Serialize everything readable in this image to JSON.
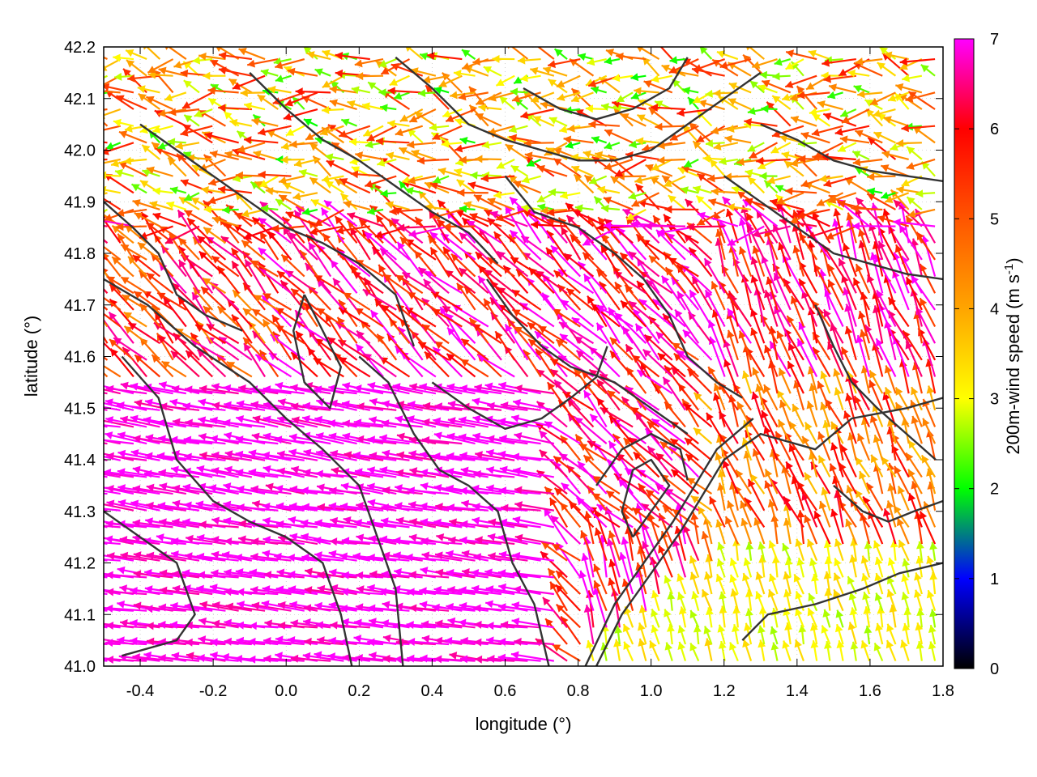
{
  "chart_data": {
    "type": "vector-field",
    "xlabel": "longitude (°)",
    "ylabel": "latitude (°)",
    "xlim": [
      -0.5,
      1.8
    ],
    "ylim": [
      41.0,
      42.2
    ],
    "xticks": [
      -0.4,
      -0.2,
      0.0,
      0.2,
      0.4,
      0.6,
      0.8,
      1.0,
      1.2,
      1.4,
      1.6,
      1.8
    ],
    "yticks": [
      41.0,
      41.1,
      41.2,
      41.3,
      41.4,
      41.5,
      41.6,
      41.7,
      41.8,
      41.9,
      42.0,
      42.1,
      42.2
    ],
    "xtick_labels": [
      "-0.4",
      "-0.2",
      "0.0",
      "0.2",
      "0.4",
      "0.6",
      "0.8",
      "1.0",
      "1.2",
      "1.4",
      "1.6",
      "1.8"
    ],
    "ytick_labels": [
      "41.0",
      "41.1",
      "41.2",
      "41.3",
      "41.4",
      "41.5",
      "41.6",
      "41.7",
      "41.8",
      "41.9",
      "42.0",
      "42.1",
      "42.2"
    ],
    "grid": "dotted",
    "colorbar": {
      "label_main": "200m-wind speed (m s",
      "label_sup": "-1",
      "label_end": ")",
      "range": [
        0,
        7
      ],
      "ticks": [
        "0",
        "1",
        "2",
        "3",
        "4",
        "5",
        "6",
        "7"
      ],
      "stops": [
        {
          "value": 0,
          "color": "#000000"
        },
        {
          "value": 1,
          "color": "#0000ff"
        },
        {
          "value": 2,
          "color": "#00ff00"
        },
        {
          "value": 3,
          "color": "#ffff00"
        },
        {
          "value": 4,
          "color": "#ffa500"
        },
        {
          "value": 5,
          "color": "#ff5500"
        },
        {
          "value": 6,
          "color": "#ff0000"
        },
        {
          "value": 7,
          "color": "#ff00ff"
        }
      ]
    },
    "contour_color": "#333333",
    "contours": [
      [
        [
          0.85,
          41.0
        ],
        [
          0.92,
          41.1
        ],
        [
          1.0,
          41.18
        ],
        [
          1.08,
          41.26
        ],
        [
          1.14,
          41.33
        ],
        [
          1.2,
          41.4
        ],
        [
          1.3,
          41.45
        ],
        [
          1.45,
          41.42
        ],
        [
          1.55,
          41.48
        ],
        [
          1.7,
          41.5
        ],
        [
          1.8,
          41.52
        ]
      ],
      [
        [
          0.82,
          41.0
        ],
        [
          0.9,
          41.12
        ],
        [
          0.98,
          41.2
        ],
        [
          1.06,
          41.28
        ],
        [
          1.12,
          41.35
        ],
        [
          1.18,
          41.42
        ],
        [
          1.28,
          41.48
        ]
      ],
      [
        [
          1.25,
          41.05
        ],
        [
          1.32,
          41.1
        ],
        [
          1.45,
          41.12
        ],
        [
          1.58,
          41.15
        ],
        [
          1.68,
          41.18
        ],
        [
          1.8,
          41.2
        ]
      ],
      [
        [
          -0.5,
          41.75
        ],
        [
          -0.38,
          41.7
        ],
        [
          -0.25,
          41.62
        ],
        [
          -0.1,
          41.55
        ],
        [
          0.0,
          41.48
        ],
        [
          0.1,
          41.42
        ],
        [
          0.2,
          41.35
        ],
        [
          0.25,
          41.25
        ],
        [
          0.3,
          41.15
        ],
        [
          0.32,
          41.0
        ]
      ],
      [
        [
          -0.45,
          41.6
        ],
        [
          -0.35,
          41.52
        ],
        [
          -0.3,
          41.4
        ],
        [
          -0.2,
          41.32
        ],
        [
          -0.1,
          41.28
        ],
        [
          0.0,
          41.25
        ],
        [
          0.1,
          41.2
        ],
        [
          0.15,
          41.1
        ],
        [
          0.18,
          41.0
        ]
      ],
      [
        [
          -0.5,
          41.3
        ],
        [
          -0.4,
          41.25
        ],
        [
          -0.3,
          41.2
        ],
        [
          -0.25,
          41.1
        ],
        [
          -0.3,
          41.05
        ],
        [
          -0.45,
          41.02
        ]
      ],
      [
        [
          0.2,
          41.6
        ],
        [
          0.28,
          41.55
        ],
        [
          0.35,
          41.45
        ],
        [
          0.42,
          41.38
        ],
        [
          0.5,
          41.35
        ],
        [
          0.58,
          41.3
        ],
        [
          0.62,
          41.2
        ],
        [
          0.68,
          41.12
        ],
        [
          0.72,
          41.0
        ]
      ],
      [
        [
          0.4,
          41.55
        ],
        [
          0.5,
          41.5
        ],
        [
          0.6,
          41.46
        ],
        [
          0.7,
          41.48
        ],
        [
          0.78,
          41.52
        ],
        [
          0.85,
          41.56
        ],
        [
          0.88,
          41.62
        ]
      ],
      [
        [
          0.6,
          41.95
        ],
        [
          0.68,
          41.88
        ],
        [
          0.8,
          41.85
        ],
        [
          0.9,
          41.8
        ],
        [
          0.98,
          41.75
        ],
        [
          1.05,
          41.68
        ],
        [
          1.1,
          41.6
        ],
        [
          1.18,
          41.55
        ],
        [
          1.25,
          41.52
        ]
      ],
      [
        [
          0.55,
          41.75
        ],
        [
          0.62,
          41.68
        ],
        [
          0.7,
          41.62
        ],
        [
          0.78,
          41.58
        ],
        [
          0.9,
          41.55
        ],
        [
          1.0,
          41.5
        ],
        [
          1.1,
          41.45
        ]
      ],
      [
        [
          -0.4,
          42.05
        ],
        [
          -0.3,
          42.0
        ],
        [
          -0.2,
          41.95
        ],
        [
          -0.1,
          41.9
        ],
        [
          0.0,
          41.85
        ],
        [
          0.1,
          41.82
        ],
        [
          0.2,
          41.78
        ],
        [
          0.3,
          41.72
        ],
        [
          0.35,
          41.62
        ]
      ],
      [
        [
          -0.1,
          42.15
        ],
        [
          0.0,
          42.08
        ],
        [
          0.1,
          42.02
        ],
        [
          0.2,
          41.98
        ],
        [
          0.3,
          41.93
        ],
        [
          0.4,
          41.88
        ],
        [
          0.5,
          41.84
        ],
        [
          0.58,
          41.78
        ]
      ],
      [
        [
          0.3,
          42.18
        ],
        [
          0.4,
          42.12
        ],
        [
          0.5,
          42.05
        ],
        [
          0.6,
          42.02
        ],
        [
          0.7,
          42.0
        ],
        [
          0.8,
          41.98
        ],
        [
          0.9,
          41.98
        ],
        [
          1.0,
          42.0
        ],
        [
          1.1,
          42.05
        ],
        [
          1.2,
          42.1
        ],
        [
          1.3,
          42.15
        ]
      ],
      [
        [
          0.65,
          42.12
        ],
        [
          0.75,
          42.08
        ],
        [
          0.85,
          42.06
        ],
        [
          0.95,
          42.08
        ],
        [
          1.05,
          42.12
        ],
        [
          1.1,
          42.18
        ]
      ],
      [
        [
          1.2,
          41.95
        ],
        [
          1.3,
          41.9
        ],
        [
          1.4,
          41.85
        ],
        [
          1.5,
          41.8
        ],
        [
          1.6,
          41.78
        ],
        [
          1.7,
          41.76
        ],
        [
          1.8,
          41.75
        ]
      ],
      [
        [
          1.3,
          42.05
        ],
        [
          1.4,
          42.02
        ],
        [
          1.5,
          41.98
        ],
        [
          1.6,
          41.96
        ],
        [
          1.7,
          41.95
        ],
        [
          1.8,
          41.94
        ]
      ],
      [
        [
          1.45,
          41.7
        ],
        [
          1.5,
          41.62
        ],
        [
          1.55,
          41.55
        ],
        [
          1.62,
          41.5
        ],
        [
          1.7,
          41.45
        ],
        [
          1.78,
          41.4
        ]
      ],
      [
        [
          1.5,
          41.35
        ],
        [
          1.58,
          41.3
        ],
        [
          1.65,
          41.28
        ],
        [
          1.72,
          41.3
        ],
        [
          1.8,
          41.32
        ]
      ],
      [
        [
          0.95,
          41.25
        ],
        [
          1.0,
          41.3
        ],
        [
          1.05,
          41.35
        ],
        [
          1.0,
          41.4
        ],
        [
          0.95,
          41.38
        ],
        [
          0.92,
          41.3
        ],
        [
          0.95,
          41.25
        ]
      ],
      [
        [
          0.85,
          41.35
        ],
        [
          0.92,
          41.42
        ],
        [
          1.0,
          41.45
        ],
        [
          1.08,
          41.42
        ],
        [
          1.1,
          41.36
        ]
      ],
      [
        [
          -0.5,
          41.9
        ],
        [
          -0.42,
          41.85
        ],
        [
          -0.35,
          41.8
        ],
        [
          -0.3,
          41.72
        ],
        [
          -0.22,
          41.68
        ],
        [
          -0.12,
          41.65
        ]
      ],
      [
        [
          0.05,
          41.72
        ],
        [
          0.1,
          41.65
        ],
        [
          0.15,
          41.58
        ],
        [
          0.12,
          41.5
        ],
        [
          0.05,
          41.55
        ],
        [
          0.02,
          41.65
        ],
        [
          0.05,
          41.72
        ]
      ]
    ],
    "wind_field_note_colors": "arrow color encodes 200m wind speed"
  }
}
